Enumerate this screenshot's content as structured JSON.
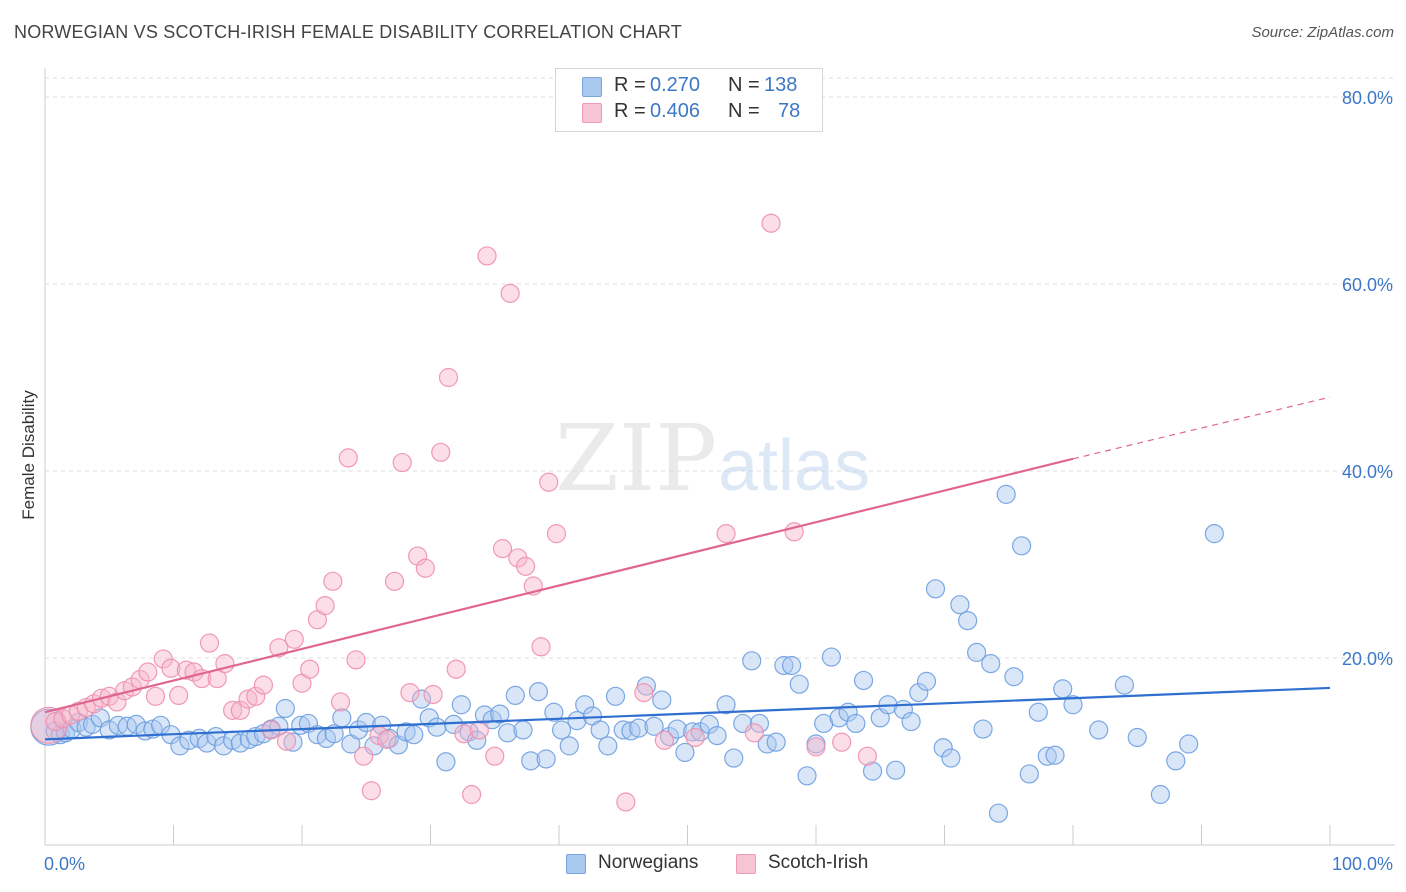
{
  "title": "NORWEGIAN VS SCOTCH-IRISH FEMALE DISABILITY CORRELATION CHART",
  "source": "Source: ZipAtlas.com",
  "colors": {
    "blue": "#3d78c7",
    "blue_fill": "#a9c8f0",
    "blue_line": "#2f6fd0",
    "pink_fill": "#f6b6c9",
    "pink_line": "#e06692",
    "grid": "#dddddd"
  },
  "legend": {
    "rows": [
      {
        "r_label": "R =",
        "r_value": "0.270",
        "n_label": "N =",
        "n_value": "138"
      },
      {
        "r_label": "R =",
        "r_value": "0.406",
        "n_label": "N =",
        "n_value": "78"
      }
    ]
  },
  "bottom_legend": {
    "series1": "Norwegians",
    "series2": "Scotch-Irish"
  },
  "watermark": {
    "zip": "ZIP",
    "atlas": "atlas"
  },
  "chart_data": {
    "type": "scatter",
    "title": "NORWEGIAN VS SCOTCH-IRISH FEMALE DISABILITY CORRELATION CHART",
    "xlabel": "",
    "ylabel": "Female Disability",
    "xlim": [
      0,
      100
    ],
    "ylim": [
      0,
      80
    ],
    "x_tick_labels": {
      "left": "0.0%",
      "right": "100.0%"
    },
    "y_ticks": [
      20,
      40,
      60,
      80
    ],
    "y_tick_labels": [
      "20.0%",
      "40.0%",
      "60.0%",
      "80.0%"
    ],
    "grid": true,
    "legend_position": "top-center",
    "series": [
      {
        "name": "Norwegians",
        "color": "#a9c8f0",
        "trend": {
          "x": [
            0,
            100
          ],
          "y": [
            11.3,
            16.8
          ],
          "dashed_to": null
        },
        "points": [
          [
            0.3,
            12.6
          ],
          [
            0.8,
            12.2
          ],
          [
            1.2,
            11.8
          ],
          [
            1.6,
            12.0
          ],
          [
            2.1,
            12.4
          ],
          [
            2.6,
            13.1
          ],
          [
            3.2,
            12.6
          ],
          [
            3.7,
            12.9
          ],
          [
            4.3,
            13.6
          ],
          [
            5.0,
            12.3
          ],
          [
            5.7,
            12.8
          ],
          [
            6.4,
            12.7
          ],
          [
            7.1,
            12.9
          ],
          [
            7.8,
            12.2
          ],
          [
            8.4,
            12.4
          ],
          [
            9.0,
            12.8
          ],
          [
            9.8,
            11.8
          ],
          [
            10.5,
            10.6
          ],
          [
            11.2,
            11.2
          ],
          [
            12.0,
            11.4
          ],
          [
            12.6,
            10.9
          ],
          [
            13.3,
            11.6
          ],
          [
            13.9,
            10.6
          ],
          [
            14.6,
            11.2
          ],
          [
            15.2,
            10.9
          ],
          [
            15.9,
            11.3
          ],
          [
            16.4,
            11.6
          ],
          [
            17.0,
            11.9
          ],
          [
            17.6,
            12.4
          ],
          [
            18.2,
            12.7
          ],
          [
            18.7,
            14.6
          ],
          [
            19.3,
            11.0
          ],
          [
            19.9,
            12.8
          ],
          [
            20.5,
            13.0
          ],
          [
            21.2,
            11.8
          ],
          [
            21.9,
            11.4
          ],
          [
            22.5,
            11.9
          ],
          [
            23.1,
            13.6
          ],
          [
            23.8,
            10.8
          ],
          [
            24.4,
            12.3
          ],
          [
            25.0,
            13.1
          ],
          [
            25.6,
            10.6
          ],
          [
            26.2,
            12.8
          ],
          [
            26.8,
            11.4
          ],
          [
            27.5,
            10.7
          ],
          [
            28.1,
            12.1
          ],
          [
            28.7,
            11.8
          ],
          [
            29.3,
            15.6
          ],
          [
            29.9,
            13.6
          ],
          [
            30.5,
            12.6
          ],
          [
            31.2,
            8.9
          ],
          [
            31.8,
            12.9
          ],
          [
            32.4,
            15.0
          ],
          [
            33.0,
            12.1
          ],
          [
            33.6,
            11.2
          ],
          [
            34.2,
            13.9
          ],
          [
            34.8,
            13.4
          ],
          [
            35.4,
            14.0
          ],
          [
            36.0,
            12.0
          ],
          [
            36.6,
            16.0
          ],
          [
            37.2,
            12.3
          ],
          [
            37.8,
            9.0
          ],
          [
            38.4,
            16.4
          ],
          [
            39.0,
            9.2
          ],
          [
            39.6,
            14.2
          ],
          [
            40.2,
            12.3
          ],
          [
            40.8,
            10.6
          ],
          [
            41.4,
            13.3
          ],
          [
            42.0,
            15.0
          ],
          [
            42.6,
            13.8
          ],
          [
            43.2,
            12.3
          ],
          [
            43.8,
            10.6
          ],
          [
            44.4,
            15.9
          ],
          [
            45.0,
            12.3
          ],
          [
            45.6,
            12.2
          ],
          [
            46.2,
            12.5
          ],
          [
            46.8,
            17.0
          ],
          [
            47.4,
            12.7
          ],
          [
            48.0,
            15.5
          ],
          [
            48.6,
            11.6
          ],
          [
            49.2,
            12.4
          ],
          [
            49.8,
            9.9
          ],
          [
            50.4,
            12.1
          ],
          [
            51.0,
            12.1
          ],
          [
            51.7,
            12.9
          ],
          [
            52.3,
            11.7
          ],
          [
            53.0,
            15.0
          ],
          [
            53.6,
            9.3
          ],
          [
            54.3,
            13.0
          ],
          [
            55.0,
            19.7
          ],
          [
            55.6,
            13.0
          ],
          [
            56.2,
            10.8
          ],
          [
            56.9,
            11.0
          ],
          [
            57.5,
            19.2
          ],
          [
            58.1,
            19.2
          ],
          [
            58.7,
            17.2
          ],
          [
            59.3,
            7.4
          ],
          [
            60.0,
            10.8
          ],
          [
            60.6,
            13.0
          ],
          [
            61.2,
            20.1
          ],
          [
            61.8,
            13.6
          ],
          [
            62.5,
            14.2
          ],
          [
            63.1,
            13.0
          ],
          [
            63.7,
            17.6
          ],
          [
            64.4,
            7.9
          ],
          [
            65.0,
            13.6
          ],
          [
            65.6,
            15.0
          ],
          [
            66.2,
            8.0
          ],
          [
            66.8,
            14.5
          ],
          [
            67.4,
            13.2
          ],
          [
            68.0,
            16.3
          ],
          [
            68.6,
            17.5
          ],
          [
            69.3,
            27.4
          ],
          [
            69.9,
            10.4
          ],
          [
            70.5,
            9.3
          ],
          [
            71.2,
            25.7
          ],
          [
            71.8,
            24.0
          ],
          [
            72.5,
            20.6
          ],
          [
            73.0,
            12.4
          ],
          [
            73.6,
            19.4
          ],
          [
            74.2,
            3.4
          ],
          [
            74.8,
            37.5
          ],
          [
            75.4,
            18.0
          ],
          [
            76.0,
            32.0
          ],
          [
            76.6,
            7.6
          ],
          [
            77.3,
            14.2
          ],
          [
            78.0,
            9.5
          ],
          [
            78.6,
            9.6
          ],
          [
            79.2,
            16.7
          ],
          [
            80.0,
            15.0
          ],
          [
            82.0,
            12.3
          ],
          [
            84.0,
            17.1
          ],
          [
            85.0,
            11.5
          ],
          [
            86.8,
            5.4
          ],
          [
            88.0,
            9.0
          ],
          [
            89.0,
            10.8
          ],
          [
            91.0,
            33.3
          ]
        ]
      },
      {
        "name": "Scotch-Irish",
        "color": "#f6b6c9",
        "trend": {
          "x": [
            0,
            80
          ],
          "y": [
            14.2,
            41.3
          ],
          "dashed_to": {
            "x": 100,
            "y": 47.9
          }
        },
        "points": [
          [
            0.3,
            12.8
          ],
          [
            0.8,
            13.2
          ],
          [
            1.4,
            13.5
          ],
          [
            2.0,
            13.9
          ],
          [
            2.6,
            14.3
          ],
          [
            3.2,
            14.7
          ],
          [
            3.8,
            15.1
          ],
          [
            4.4,
            15.7
          ],
          [
            5.0,
            15.9
          ],
          [
            5.6,
            15.3
          ],
          [
            6.2,
            16.5
          ],
          [
            6.8,
            16.9
          ],
          [
            7.4,
            17.7
          ],
          [
            8.0,
            18.5
          ],
          [
            8.6,
            15.9
          ],
          [
            9.2,
            19.9
          ],
          [
            9.8,
            18.9
          ],
          [
            10.4,
            16.0
          ],
          [
            11.0,
            18.7
          ],
          [
            11.6,
            18.5
          ],
          [
            12.2,
            17.8
          ],
          [
            12.8,
            21.6
          ],
          [
            13.4,
            17.8
          ],
          [
            14.0,
            19.4
          ],
          [
            14.6,
            14.4
          ],
          [
            15.2,
            14.4
          ],
          [
            15.8,
            15.6
          ],
          [
            16.4,
            15.9
          ],
          [
            17.0,
            17.1
          ],
          [
            17.6,
            12.3
          ],
          [
            18.2,
            21.1
          ],
          [
            18.8,
            11.1
          ],
          [
            19.4,
            22.0
          ],
          [
            20.0,
            17.3
          ],
          [
            20.6,
            18.8
          ],
          [
            21.2,
            24.1
          ],
          [
            21.8,
            25.6
          ],
          [
            22.4,
            28.2
          ],
          [
            23.0,
            15.3
          ],
          [
            23.6,
            41.4
          ],
          [
            24.2,
            19.8
          ],
          [
            24.8,
            9.5
          ],
          [
            25.4,
            5.8
          ],
          [
            26.0,
            11.7
          ],
          [
            26.6,
            11.3
          ],
          [
            27.2,
            28.2
          ],
          [
            27.8,
            40.9
          ],
          [
            28.4,
            16.3
          ],
          [
            29.0,
            30.9
          ],
          [
            29.6,
            29.6
          ],
          [
            30.2,
            16.1
          ],
          [
            30.8,
            42.0
          ],
          [
            31.4,
            50.0
          ],
          [
            32.0,
            18.8
          ],
          [
            32.6,
            11.9
          ],
          [
            33.2,
            5.4
          ],
          [
            33.8,
            12.3
          ],
          [
            34.4,
            63.0
          ],
          [
            35.0,
            9.5
          ],
          [
            35.6,
            31.7
          ],
          [
            36.2,
            59.0
          ],
          [
            36.8,
            30.7
          ],
          [
            37.4,
            29.8
          ],
          [
            38.0,
            27.7
          ],
          [
            38.6,
            21.2
          ],
          [
            39.2,
            38.8
          ],
          [
            39.8,
            33.3
          ],
          [
            45.2,
            4.6
          ],
          [
            46.6,
            16.3
          ],
          [
            48.2,
            11.2
          ],
          [
            50.6,
            11.5
          ],
          [
            53.0,
            33.3
          ],
          [
            55.2,
            12.0
          ],
          [
            56.5,
            66.5
          ],
          [
            58.3,
            33.5
          ],
          [
            60.0,
            10.5
          ],
          [
            62.0,
            11.0
          ],
          [
            64.0,
            9.5
          ]
        ]
      }
    ]
  }
}
